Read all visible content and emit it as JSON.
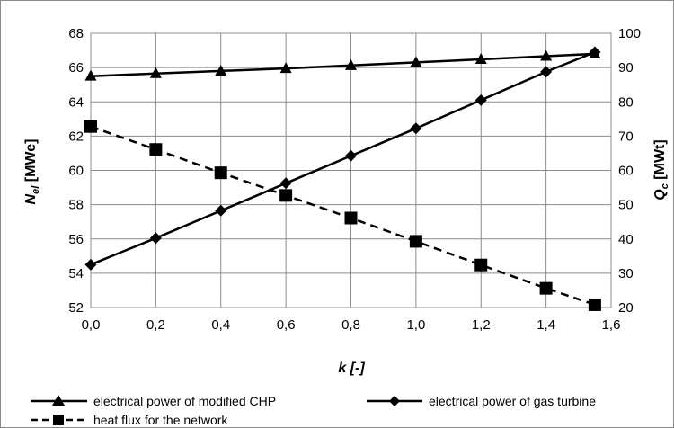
{
  "chart_data": {
    "type": "line",
    "x": [
      0.0,
      0.2,
      0.4,
      0.6,
      0.8,
      1.0,
      1.2,
      1.4,
      1.55
    ],
    "xlim": [
      0.0,
      1.6
    ],
    "xticks": [
      "0,0",
      "0,2",
      "0,4",
      "0,6",
      "0,8",
      "1,0",
      "1,2",
      "1,4",
      "1,6"
    ],
    "xlabel": "k [-]",
    "y_left": {
      "label_main": "N",
      "label_sub": "el",
      "label_unit": " [MWe]",
      "lim": [
        52,
        68
      ],
      "ticks": [
        "52",
        "54",
        "56",
        "58",
        "60",
        "62",
        "64",
        "66",
        "68"
      ]
    },
    "y_right": {
      "label_main": "Q",
      "label_sub": "c",
      "label_unit": " [MWt]",
      "lim": [
        20,
        100
      ],
      "ticks": [
        "20",
        "30",
        "40",
        "50",
        "60",
        "70",
        "80",
        "90",
        "100"
      ]
    },
    "grid": true,
    "legend_position": "bottom",
    "series": [
      {
        "name": "electrical power of modified CHP",
        "axis": "left",
        "marker": "triangle",
        "dash": "solid",
        "color": "#000000",
        "values": [
          65.5,
          65.65,
          65.8,
          65.95,
          66.12,
          66.3,
          66.48,
          66.66,
          66.8
        ]
      },
      {
        "name": "electrical power of gas turbine",
        "axis": "left",
        "marker": "diamond",
        "dash": "solid",
        "color": "#000000",
        "values": [
          54.5,
          56.05,
          57.65,
          59.25,
          60.85,
          62.45,
          64.1,
          65.75,
          66.9
        ]
      },
      {
        "name": "heat flux for the network",
        "axis": "right",
        "marker": "square",
        "dash": "dashed",
        "color": "#000000",
        "values": [
          72.8,
          66.1,
          59.3,
          52.7,
          46.1,
          39.3,
          32.4,
          25.6,
          20.8
        ]
      }
    ]
  }
}
